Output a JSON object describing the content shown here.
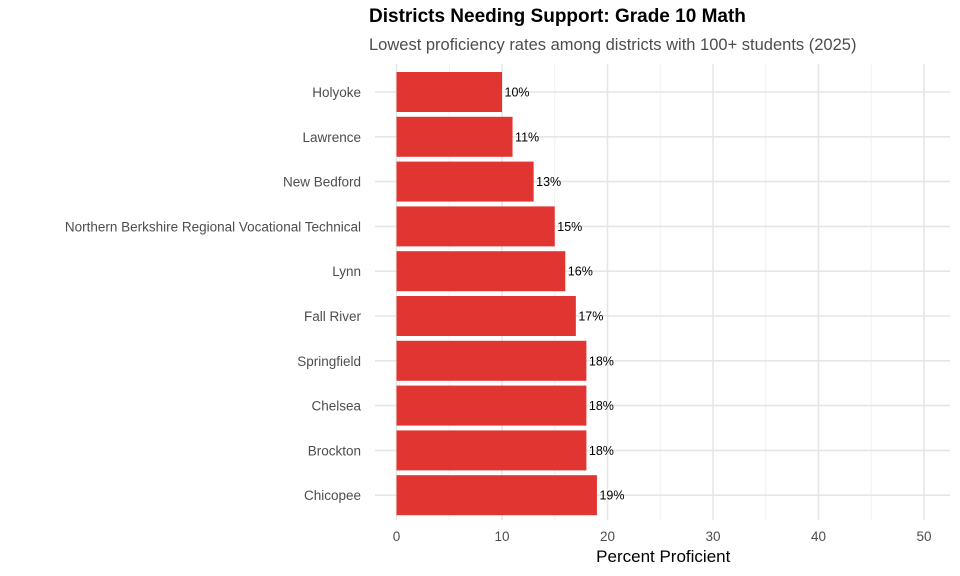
{
  "chart_data": {
    "type": "bar",
    "orientation": "horizontal",
    "title": "Districts Needing Support: Grade 10 Math",
    "subtitle": "Lowest proficiency rates among districts with 100+ students (2025)",
    "xlabel": "Percent Proficient",
    "ylabel": "",
    "xlim": [
      0,
      52
    ],
    "xticks": [
      0,
      10,
      20,
      30,
      40,
      50
    ],
    "grid": true,
    "legend": "none",
    "bar_color": "#E03530",
    "categories": [
      "Holyoke",
      "Lawrence",
      "New Bedford",
      "Northern Berkshire Regional Vocational Technical",
      "Lynn",
      "Fall River",
      "Springfield",
      "Chelsea",
      "Brockton",
      "Chicopee"
    ],
    "values": [
      10,
      11,
      13,
      15,
      16,
      17,
      18,
      18,
      18,
      19
    ],
    "data_labels": [
      "10%",
      "11%",
      "13%",
      "15%",
      "16%",
      "17%",
      "18%",
      "18%",
      "18%",
      "19%"
    ]
  }
}
